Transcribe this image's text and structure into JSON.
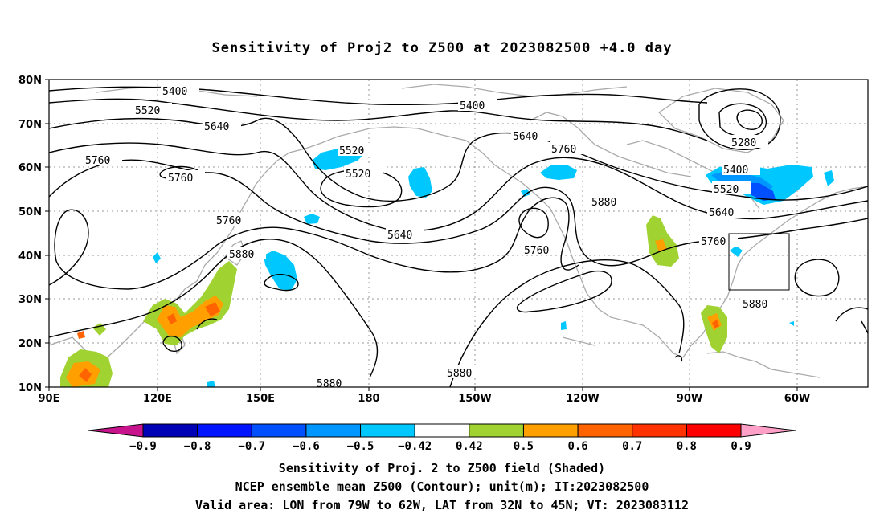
{
  "title": "Sensitivity of Proj2 to Z500 at 2023082500 +4.0 day",
  "axes": {
    "lat_labels": [
      "80N",
      "70N",
      "60N",
      "50N",
      "40N",
      "30N",
      "20N",
      "10N"
    ],
    "lon_labels": [
      "90E",
      "120E",
      "150E",
      "180",
      "150W",
      "120W",
      "90W",
      "60W"
    ]
  },
  "contour_labels": [
    {
      "text": "5400"
    },
    {
      "text": "5400"
    },
    {
      "text": "5520"
    },
    {
      "text": "5520"
    },
    {
      "text": "5520"
    },
    {
      "text": "5640"
    },
    {
      "text": "5640"
    },
    {
      "text": "5640"
    },
    {
      "text": "5760"
    },
    {
      "text": "5760"
    },
    {
      "text": "5760"
    },
    {
      "text": "5760"
    },
    {
      "text": "5760"
    },
    {
      "text": "5880"
    },
    {
      "text": "5880"
    },
    {
      "text": "5880"
    },
    {
      "text": "5880"
    },
    {
      "text": "5280"
    },
    {
      "text": "5400"
    },
    {
      "text": "5520"
    },
    {
      "text": "5640"
    },
    {
      "text": "5760"
    },
    {
      "text": "5880"
    }
  ],
  "colorbar": {
    "labels": [
      "-0.9",
      "-0.8",
      "-0.7",
      "-0.6",
      "-0.5",
      "-0.42",
      "0.42",
      "0.5",
      "0.6",
      "0.7",
      "0.8",
      "0.9"
    ],
    "colors": [
      "#0000b4",
      "#0014ff",
      "#0050ff",
      "#0096ff",
      "#00c8ff",
      "#ffffff",
      "#a0d232",
      "#ffa000",
      "#ff6400",
      "#ff3200",
      "#ff0000"
    ],
    "low_end_color": "#c8148c",
    "high_end_color": "#ffa0c8"
  },
  "captions": {
    "line1": "Sensitivity of Proj. 2 to Z500 field (Shaded)",
    "line2": "NCEP ensemble mean Z500 (Contour); unit(m); IT:2023082500",
    "line3": "Valid area: LON from 79W to 62W, LAT from 32N to 45N; VT: 2023083112"
  }
}
